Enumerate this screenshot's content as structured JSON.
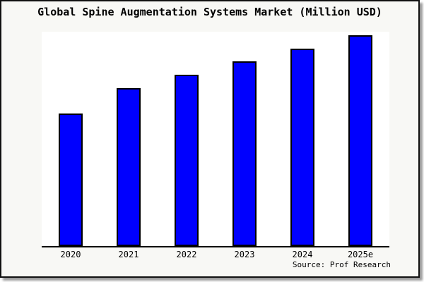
{
  "window": {
    "background": "#f8f8f5",
    "border_color": "#111111",
    "shadow_color": "#9a9a9a"
  },
  "chart_data": {
    "type": "bar",
    "title": "Global Spine Augmentation Systems Market (Million USD)",
    "categories": [
      "2020",
      "2021",
      "2022",
      "2023",
      "2024",
      "2025e"
    ],
    "values": [
      189,
      226,
      245,
      264,
      282,
      301
    ],
    "value_note": "no y-axis labels or gridlines visible; values are relative units estimated from bar pixel heights",
    "xlabel": "",
    "ylabel": "",
    "ylim": [
      0,
      306
    ],
    "y_axis_visible": false,
    "grid": false,
    "legend": false,
    "bar_color": "#0000fe",
    "bar_border_color": "#000000",
    "plot_background": "#ffffff",
    "axis_line_color": "#000000"
  },
  "source": {
    "label": "Source: Prof Research"
  }
}
